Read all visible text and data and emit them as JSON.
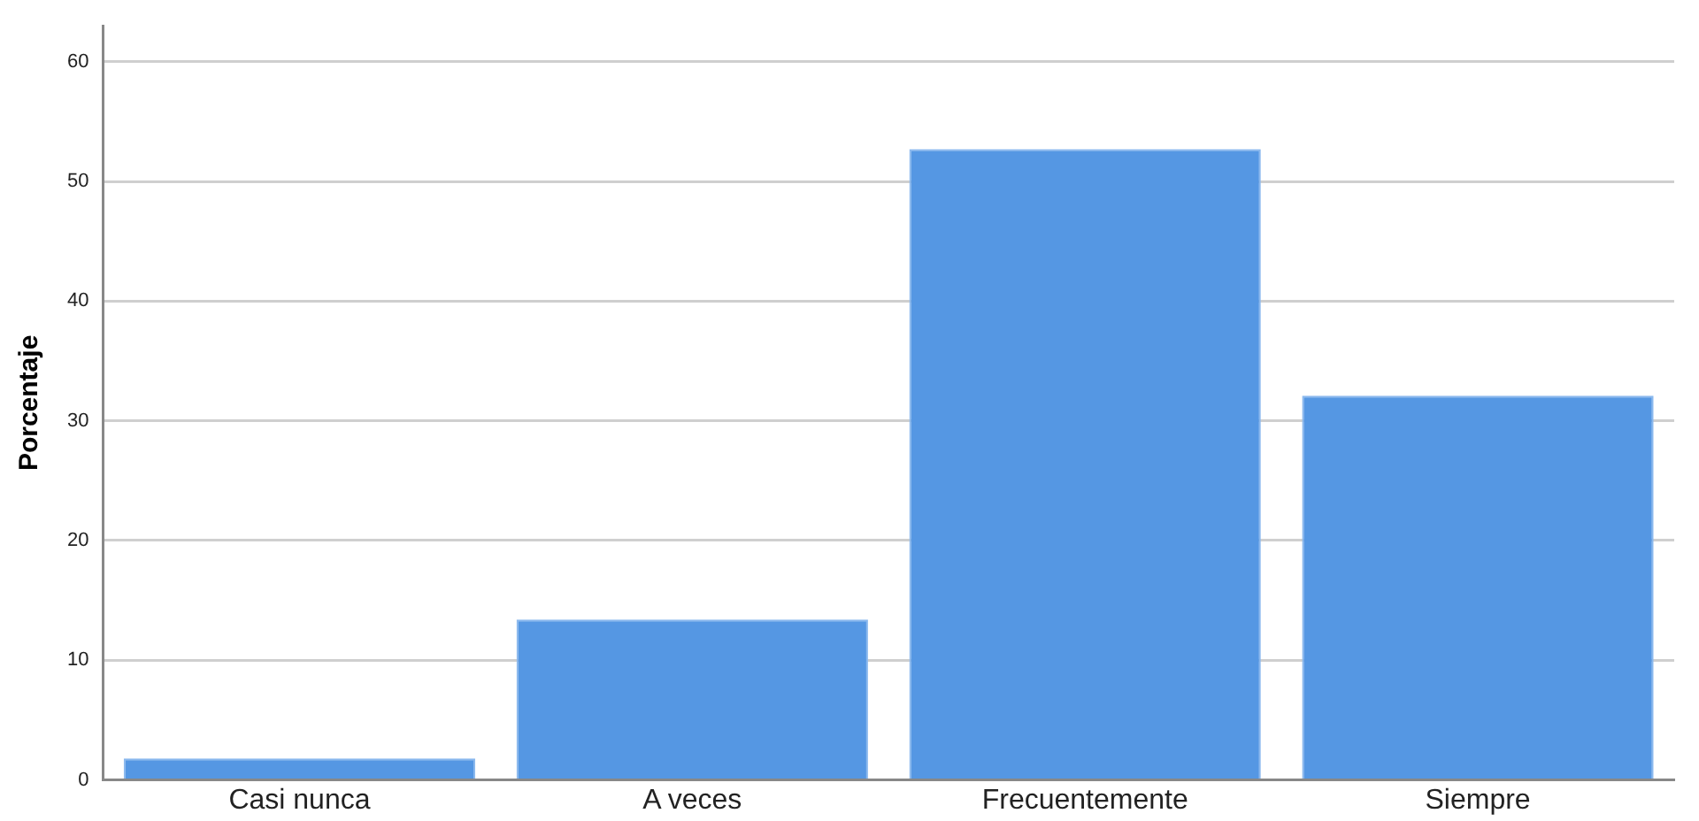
{
  "chart_data": {
    "type": "bar",
    "ylabel": "Porcentaje",
    "categories": [
      "Casi nunca",
      "A veces",
      "Frecuentemente",
      "Siempre"
    ],
    "values": [
      1.8,
      13.4,
      52.7,
      32.1
    ],
    "color": "#5597e3",
    "ylim": [
      0,
      63
    ],
    "yticks": [
      0,
      10,
      20,
      30,
      40,
      50,
      60
    ],
    "grid": "y",
    "legend": false
  }
}
